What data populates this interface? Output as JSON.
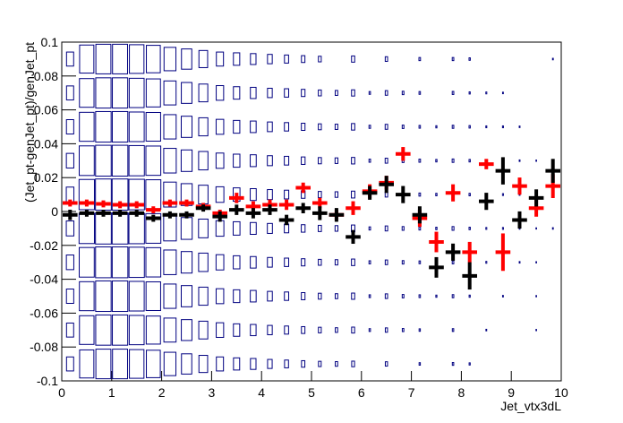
{
  "chart_data": {
    "type": "box2d_profile",
    "x_label": "Jet_vtx3dL",
    "y_label": "(Jet_pt-genJet_pt)/genJet_pt",
    "xlim": [
      0,
      10
    ],
    "ylim": [
      -0.1,
      0.1
    ],
    "xticks": [
      0,
      1,
      2,
      3,
      4,
      5,
      6,
      7,
      8,
      9,
      10
    ],
    "yticks": [
      -0.1,
      -0.08,
      -0.06,
      -0.04,
      -0.02,
      0,
      0.02,
      0.04,
      0.06,
      0.08,
      0.1
    ],
    "box_color": "#000080",
    "xbins": [
      0,
      0.3333,
      0.6667,
      1,
      1.3333,
      1.6667,
      2,
      2.3333,
      2.6667,
      3,
      3.3333,
      3.6667,
      4,
      4.3333,
      4.6667,
      5,
      5.3333,
      5.6667,
      6,
      6.3333,
      6.6667,
      7,
      7.3333,
      7.6667,
      8,
      8.3333,
      8.6667,
      9,
      9.3333,
      9.6667,
      10
    ],
    "ybins": [
      0.1,
      0.08,
      0.06,
      0.04,
      0.02,
      0,
      -0.02,
      -0.04,
      -0.06,
      -0.08,
      -0.1
    ],
    "box_sizes": [
      [
        45,
        90,
        95,
        95,
        92,
        88,
        75,
        65,
        55,
        45,
        40,
        35,
        30,
        26,
        22,
        18,
        0,
        20,
        0,
        15,
        0,
        10,
        0,
        10,
        8,
        0,
        0,
        0,
        0,
        5
      ],
      [
        45,
        92,
        97,
        97,
        94,
        90,
        77,
        67,
        57,
        47,
        40,
        36,
        30,
        27,
        23,
        19,
        16,
        20,
        9,
        15,
        11,
        9,
        0,
        10,
        7,
        6,
        5,
        0,
        0,
        0
      ],
      [
        46,
        93,
        98,
        98,
        95,
        92,
        78,
        68,
        58,
        48,
        41,
        37,
        31,
        27,
        23,
        19,
        17,
        21,
        10,
        16,
        11,
        9,
        7,
        10,
        8,
        6,
        6,
        5,
        0,
        0
      ],
      [
        47,
        95,
        99,
        99,
        97,
        94,
        79,
        69,
        59,
        49,
        42,
        38,
        32,
        28,
        24,
        20,
        18,
        21,
        10,
        16,
        12,
        10,
        8,
        11,
        8,
        6,
        6,
        5,
        4,
        5
      ],
      [
        48,
        97,
        100,
        100,
        98,
        95,
        80,
        70,
        60,
        50,
        43,
        38,
        32,
        28,
        24,
        20,
        18,
        22,
        10,
        16,
        12,
        10,
        8,
        12,
        8,
        6,
        6,
        5,
        4,
        5
      ],
      [
        48,
        97,
        100,
        100,
        98,
        95,
        80,
        70,
        60,
        50,
        43,
        38,
        32,
        28,
        24,
        20,
        18,
        22,
        10,
        16,
        12,
        10,
        8,
        12,
        8,
        6,
        6,
        5,
        4,
        5
      ],
      [
        47,
        95,
        99,
        99,
        97,
        94,
        79,
        69,
        59,
        49,
        42,
        37,
        31,
        27,
        23,
        19,
        17,
        21,
        10,
        15,
        11,
        9,
        8,
        10,
        8,
        6,
        5,
        5,
        4,
        0
      ],
      [
        46,
        93,
        98,
        98,
        95,
        92,
        78,
        68,
        58,
        48,
        41,
        37,
        31,
        27,
        23,
        19,
        16,
        20,
        9,
        15,
        11,
        9,
        7,
        10,
        7,
        0,
        5,
        0,
        4,
        0
      ],
      [
        45,
        92,
        97,
        97,
        94,
        90,
        77,
        67,
        57,
        47,
        40,
        36,
        30,
        26,
        22,
        18,
        15,
        19,
        9,
        14,
        10,
        8,
        0,
        9,
        0,
        5,
        0,
        0,
        4,
        0
      ],
      [
        45,
        90,
        95,
        95,
        92,
        88,
        75,
        65,
        55,
        45,
        39,
        35,
        29,
        25,
        21,
        17,
        15,
        18,
        0,
        14,
        0,
        8,
        0,
        9,
        7,
        0,
        0,
        0,
        0,
        0
      ]
    ],
    "series": [
      {
        "color": "#ff0000",
        "values": [
          0.005,
          0.005,
          0.0045,
          0.004,
          0.004,
          0.001,
          0.005,
          0.005,
          0.003,
          -0.001,
          0.008,
          0.003,
          0.004,
          0.004,
          0.014,
          0.005,
          -0.002,
          0.002,
          0.012,
          0.017,
          0.034,
          -0.004,
          -0.018,
          0.011,
          -0.024,
          0.028,
          -0.024,
          0.015,
          0.002,
          0.015
        ],
        "errors": [
          0.001,
          0.001,
          0.001,
          0.001,
          0.001,
          0.001,
          0.001,
          0.001,
          0.001,
          0.001,
          0.002,
          0.002,
          0.002,
          0.002,
          0.002,
          0.002,
          0.002,
          0.003,
          0.003,
          0.003,
          0.003,
          0.004,
          0.005,
          0.004,
          0.005,
          0.002,
          0.01,
          0.004,
          0.004,
          0.006
        ]
      },
      {
        "color": "#000000",
        "values": [
          -0.002,
          -0.001,
          -0.001,
          -0.001,
          -0.001,
          -0.004,
          -0.002,
          -0.002,
          0.002,
          -0.003,
          0.001,
          -0.001,
          0.001,
          -0.005,
          0.002,
          -0.001,
          -0.002,
          -0.015,
          0.011,
          0.016,
          0.01,
          -0.002,
          -0.033,
          -0.024,
          -0.038,
          0.006,
          0.024,
          -0.005,
          0.008,
          0.024
        ],
        "errors": [
          0.002,
          0.001,
          0.001,
          0.001,
          0.001,
          0.001,
          0.001,
          0.001,
          0.001,
          0.002,
          0.002,
          0.002,
          0.002,
          0.002,
          0.002,
          0.003,
          0.003,
          0.003,
          0.003,
          0.004,
          0.004,
          0.004,
          0.005,
          0.004,
          0.007,
          0.004,
          0.007,
          0.004,
          0.004,
          0.006
        ]
      }
    ]
  }
}
